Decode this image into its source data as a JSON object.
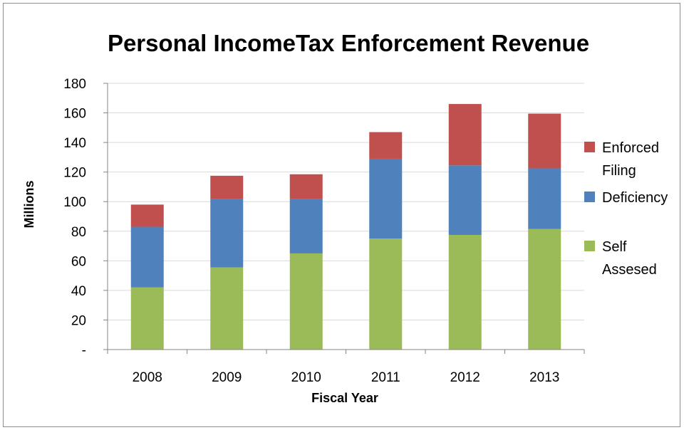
{
  "chart_data": {
    "type": "bar",
    "stacked": true,
    "title": "Personal IncomeTax  Enforcement Revenue",
    "xlabel": "Fiscal Year",
    "ylabel": "Millions",
    "categories": [
      "2008",
      "2009",
      "2010",
      "2011",
      "2012",
      "2013"
    ],
    "series": [
      {
        "name": "Self Assesed",
        "color": "#9bbb59",
        "values": [
          42,
          55.5,
          65,
          75,
          77.5,
          81.5
        ]
      },
      {
        "name": "Deficiency",
        "color": "#4f81bd",
        "values": [
          41,
          46.5,
          37,
          54,
          47,
          41
        ]
      },
      {
        "name": "Enforced Filing",
        "color": "#c0504d",
        "values": [
          15,
          15.5,
          16.5,
          18,
          41.5,
          37
        ]
      }
    ],
    "ylim": [
      0,
      180
    ],
    "yticks": [
      0,
      20,
      40,
      60,
      80,
      100,
      120,
      140,
      160,
      180
    ],
    "ytick_labels": [
      "-",
      "20",
      "40",
      "60",
      "80",
      "100",
      "120",
      "140",
      "160",
      "180"
    ],
    "legend_position": "right",
    "legend": [
      {
        "series": 2,
        "lines": [
          "Enforced",
          "Filing"
        ]
      },
      {
        "series": 1,
        "lines": [
          "Deficiency"
        ]
      },
      {
        "series": 0,
        "lines": [
          "Self",
          "Assesed"
        ]
      }
    ],
    "grid": true,
    "gridline_color": "#d9d9d9"
  }
}
